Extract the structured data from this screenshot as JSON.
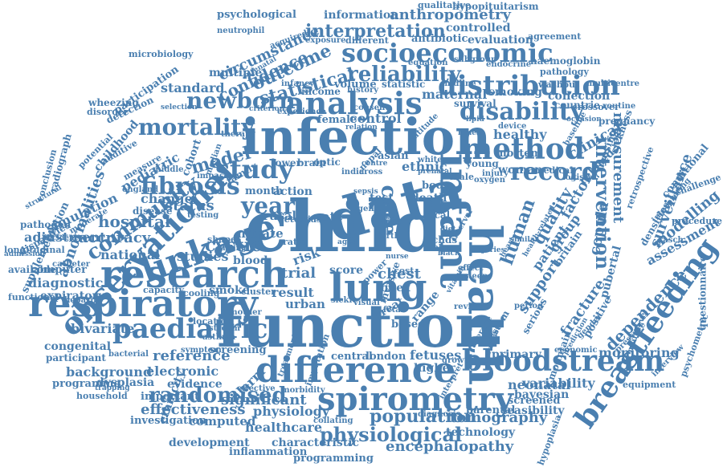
{
  "word_color": "#4a7fb0",
  "words": [
    "function",
    "child",
    "infection",
    "data",
    "respiratory",
    "research",
    "lung",
    "health",
    "difference",
    "spirometry",
    "infant",
    "analysis",
    "linkage",
    "bloodstream",
    "observational",
    "paediatric",
    "distribution",
    "breastfeeding",
    "socioeconomic",
    "method",
    "study",
    "year",
    "newborn",
    "disability",
    "fibrosis",
    "mortality",
    "community",
    "record",
    "intervention",
    "randomised",
    "population",
    "physiological",
    "reliability",
    "interpretation",
    "anthropometry",
    "statistical",
    "outcome",
    "confidence",
    "circumstance",
    "psychological",
    "hypopituitarism",
    "qualitative",
    "information",
    "controlled",
    "agreement",
    "haemoglobin",
    "antibiotic",
    "evaluation",
    "pathology",
    "washout",
    "smoking",
    "collection",
    "maternal",
    "crossover",
    "pregnancy",
    "standard",
    "multiple",
    "participation",
    "microbiology",
    "detection",
    "abnormalities",
    "supplementation",
    "disparities",
    "simulation",
    "pathogen",
    "adjustment",
    "longitudinal",
    "computer",
    "diagnostic",
    "functional",
    "expiratory",
    "bivariate",
    "congenital",
    "participant",
    "background",
    "programme",
    "household",
    "dysplasia",
    "investigation",
    "development",
    "inflammation",
    "characteristic",
    "programming",
    "encephalopathy",
    "technology",
    "tomography",
    "healthcare",
    "physiology",
    "computed",
    "effectiveness",
    "significant",
    "important",
    "evidence",
    "electronic",
    "reference",
    "alarm",
    "screening",
    "hospital",
    "accuracy",
    "national",
    "status",
    "change",
    "model",
    "cystic",
    "studies",
    "blood",
    "trial",
    "result",
    "urban",
    "score",
    "chest",
    "index",
    "range",
    "care",
    "ethnic",
    "control",
    "female",
    "income",
    "volume",
    "asian",
    "death",
    "test",
    "rate",
    "human",
    "measurement",
    "quality",
    "factor",
    "patient",
    "group",
    "support",
    "fracture",
    "dependence",
    "assessment",
    "surveillance",
    "pubertal",
    "modelling",
    "conditional",
    "monitoring",
    "variability",
    "neonatal",
    "bayesian",
    "feasibility",
    "screened",
    "parental",
    "primary",
    "central",
    "london",
    "fetuses",
    "higher",
    "based",
    "great",
    "clinical",
    "related",
    "healthy",
    "woman",
    "mortem",
    "countrie",
    "housing",
    "britain",
    "sickness",
    "questionnaire",
    "psychometric",
    "procedure",
    "challenge",
    "retrospective",
    "equipment",
    "economic",
    "hypoplasia",
    "mountain",
    "positive",
    "copula",
    "mother",
    "smoke",
    "cooling",
    "cluster",
    "capacity",
    "nitrate",
    "month",
    "action",
    "rural",
    "risk",
    "lower",
    "brain",
    "optic",
    "nepal",
    "india",
    "cross",
    "young",
    "oxygen",
    "medical",
    "logistic",
    "interview",
    "serious",
    "system",
    "period",
    "review",
    "visual",
    "sickle",
    "fetal",
    "invasive",
    "imputation",
    "treatment",
    "heparin",
    "catheter",
    "available",
    "admission",
    "incidence",
    "moderate",
    "disease",
    "childhood",
    "potential",
    "additive",
    "measure",
    "radiograph",
    "conclusion",
    "structural",
    "wheezing",
    "disorder",
    "selection",
    "acquired",
    "neutrophil",
    "exposure",
    "different",
    "equation",
    "subgroup",
    "endocrine",
    "statistic",
    "midline",
    "survival",
    "multicentre",
    "cohort",
    "pediatric",
    "england",
    "middle",
    "impact",
    "family",
    "location",
    "stream",
    "symptom",
    "bacterial",
    "ethnicity",
    "effective",
    "morbidity",
    "collating",
    "diagnosis",
    "interpret",
    "infancy",
    "history",
    "consent",
    "experience",
    "therapy",
    "median",
    "shape",
    "testing",
    "injuries",
    "centre",
    "white",
    "male",
    "body",
    "local",
    "interval",
    "chds",
    "alspac",
    "black",
    "effect",
    "injury",
    "growth",
    "average",
    "anomalies",
    "multilevel",
    "pressure",
    "gender",
    "densities",
    "rasch",
    "device",
    "baseline",
    "routine",
    "altitude",
    "relation",
    "sepsis",
    "picu",
    "power",
    "life",
    "ratio",
    "birth",
    "cost",
    "aged",
    "sleep",
    "gene",
    "asthma",
    "sibling",
    "nurse",
    "criterion",
    "antenatal",
    "lipid",
    "fitness",
    "retest",
    "bias",
    "occasion",
    "trapping",
    "similar",
    "heart",
    "interpreting",
    "prediction",
    "prenatal",
    "diet",
    "vitamin",
    "health-related"
  ]
}
